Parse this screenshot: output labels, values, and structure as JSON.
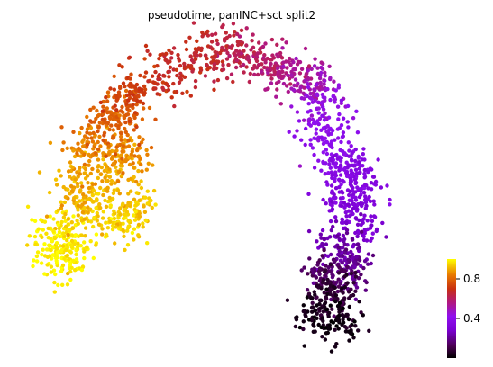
{
  "chart_data": {
    "type": "scatter",
    "title": "pseudotime, panINC+sct split2",
    "xlabel": "",
    "ylabel": "",
    "colorbar": {
      "colormap": "gnuplot",
      "range": [
        0,
        1
      ],
      "ticks": [
        0.4,
        0.8
      ],
      "tick_labels": [
        "0.4",
        "0.8"
      ]
    },
    "legend": "none",
    "grid": false,
    "axes_visible": false,
    "clusters": [
      {
        "x": 0.08,
        "y": 0.28,
        "value": 0.99
      },
      {
        "x": 0.07,
        "y": 0.36,
        "value": 0.98
      },
      {
        "x": 0.12,
        "y": 0.32,
        "value": 0.97
      },
      {
        "x": 0.14,
        "y": 0.44,
        "value": 0.93
      },
      {
        "x": 0.12,
        "y": 0.52,
        "value": 0.9
      },
      {
        "x": 0.22,
        "y": 0.4,
        "value": 0.95
      },
      {
        "x": 0.26,
        "y": 0.46,
        "value": 0.93
      },
      {
        "x": 0.2,
        "y": 0.56,
        "value": 0.89
      },
      {
        "x": 0.24,
        "y": 0.62,
        "value": 0.86
      },
      {
        "x": 0.15,
        "y": 0.64,
        "value": 0.85
      },
      {
        "x": 0.2,
        "y": 0.7,
        "value": 0.8
      },
      {
        "x": 0.23,
        "y": 0.76,
        "value": 0.78
      },
      {
        "x": 0.26,
        "y": 0.81,
        "value": 0.72
      },
      {
        "x": 0.34,
        "y": 0.88,
        "value": 0.68
      },
      {
        "x": 0.42,
        "y": 0.93,
        "value": 0.66
      },
      {
        "x": 0.5,
        "y": 0.95,
        "value": 0.63
      },
      {
        "x": 0.57,
        "y": 0.92,
        "value": 0.6
      },
      {
        "x": 0.63,
        "y": 0.89,
        "value": 0.55
      },
      {
        "x": 0.69,
        "y": 0.84,
        "value": 0.5
      },
      {
        "x": 0.71,
        "y": 0.76,
        "value": 0.44
      },
      {
        "x": 0.72,
        "y": 0.66,
        "value": 0.4
      },
      {
        "x": 0.76,
        "y": 0.58,
        "value": 0.37
      },
      {
        "x": 0.8,
        "y": 0.54,
        "value": 0.35
      },
      {
        "x": 0.77,
        "y": 0.48,
        "value": 0.34
      },
      {
        "x": 0.79,
        "y": 0.4,
        "value": 0.3
      },
      {
        "x": 0.75,
        "y": 0.32,
        "value": 0.24
      },
      {
        "x": 0.78,
        "y": 0.26,
        "value": 0.2
      },
      {
        "x": 0.72,
        "y": 0.22,
        "value": 0.14
      },
      {
        "x": 0.75,
        "y": 0.16,
        "value": 0.08
      },
      {
        "x": 0.7,
        "y": 0.12,
        "value": 0.04
      },
      {
        "x": 0.74,
        "y": 0.08,
        "value": 0.02
      }
    ]
  }
}
